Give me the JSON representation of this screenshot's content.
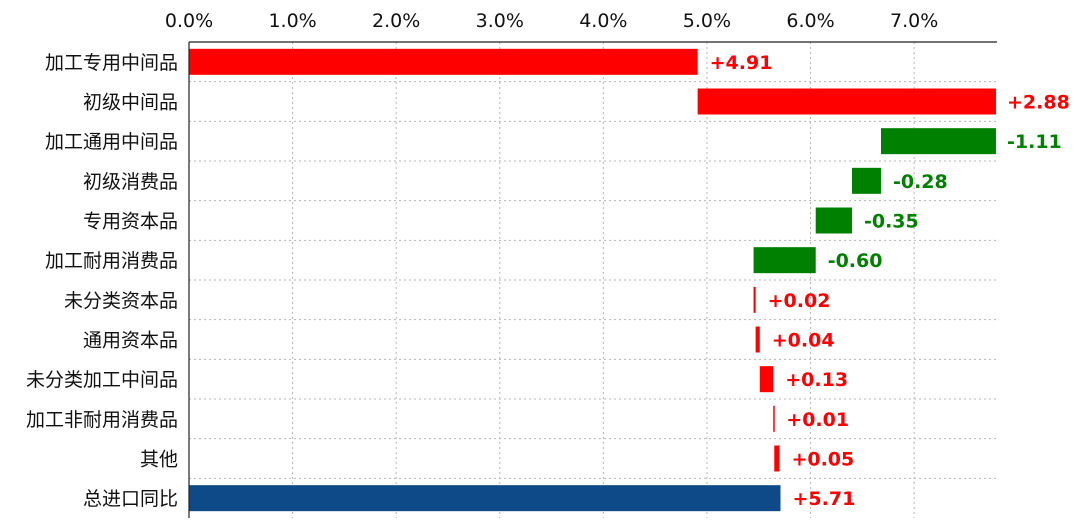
{
  "chart_data": {
    "type": "bar",
    "orientation": "horizontal",
    "subtype": "waterfall",
    "x_axis_position": "top",
    "xlim": [
      0,
      7.8
    ],
    "x_ticks": [
      0,
      1,
      2,
      3,
      4,
      5,
      6,
      7
    ],
    "x_tick_labels": [
      "0.0%",
      "1.0%",
      "2.0%",
      "3.0%",
      "4.0%",
      "5.0%",
      "6.0%",
      "7.0%"
    ],
    "grid": true,
    "colors": {
      "increase": "#ff0000",
      "decrease": "#008000",
      "total": "#0d4a87"
    },
    "bars": [
      {
        "category": "加工专用中间品",
        "start": 0,
        "end": 4.91,
        "label": "+4.91",
        "kind": "increase"
      },
      {
        "category": "初级中间品",
        "start": 4.91,
        "end": 7.79,
        "label": "+2.88",
        "kind": "increase"
      },
      {
        "category": "加工通用中间品",
        "start": 7.79,
        "end": 6.68,
        "label": "-1.11",
        "kind": "decrease"
      },
      {
        "category": "初级消费品",
        "start": 6.68,
        "end": 6.4,
        "label": "-0.28",
        "kind": "decrease"
      },
      {
        "category": "专用资本品",
        "start": 6.4,
        "end": 6.05,
        "label": "-0.35",
        "kind": "decrease"
      },
      {
        "category": "加工耐用消费品",
        "start": 6.05,
        "end": 5.45,
        "label": "-0.60",
        "kind": "decrease"
      },
      {
        "category": "未分类资本品",
        "start": 5.45,
        "end": 5.47,
        "label": "+0.02",
        "kind": "increase"
      },
      {
        "category": "通用资本品",
        "start": 5.47,
        "end": 5.51,
        "label": "+0.04",
        "kind": "increase"
      },
      {
        "category": "未分类加工中间品",
        "start": 5.51,
        "end": 5.64,
        "label": "+0.13",
        "kind": "increase"
      },
      {
        "category": "加工非耐用消费品",
        "start": 5.64,
        "end": 5.65,
        "label": "+0.01",
        "kind": "increase"
      },
      {
        "category": "其他",
        "start": 5.65,
        "end": 5.7,
        "label": "+0.05",
        "kind": "increase"
      },
      {
        "category": "总进口同比",
        "start": 0,
        "end": 5.71,
        "label": "+5.71",
        "kind": "total"
      }
    ]
  }
}
